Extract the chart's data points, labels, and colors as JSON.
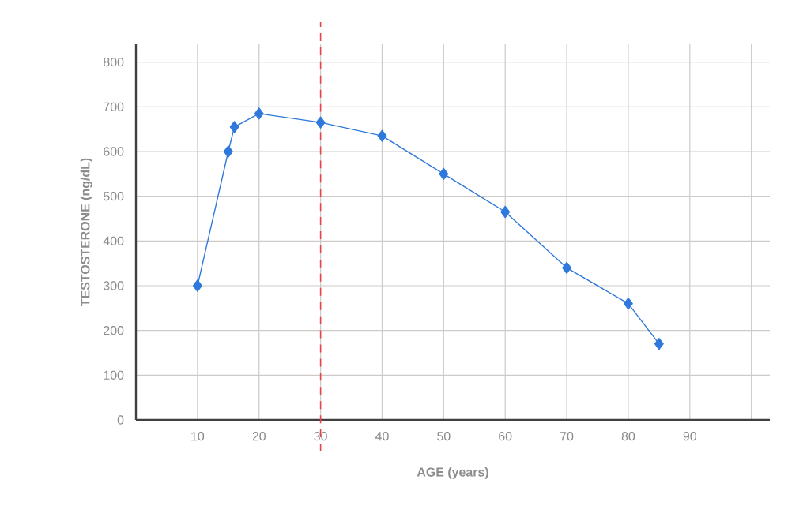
{
  "chart_data": {
    "type": "line",
    "xlabel": "AGE (years)",
    "ylabel": "TESTOSTERONE (ng/dL)",
    "x": [
      10,
      15,
      16,
      20,
      30,
      40,
      50,
      60,
      70,
      80,
      85
    ],
    "series": [
      {
        "color": "#2f78dc",
        "values": [
          300,
          600,
          655,
          685,
          665,
          635,
          550,
          465,
          340,
          260,
          170
        ]
      }
    ],
    "xlim": [
      0,
      103
    ],
    "xticks": [
      10,
      20,
      30,
      40,
      50,
      60,
      70,
      80,
      90,
      {
        "value": 100,
        "label": null
      }
    ],
    "ylim": [
      0,
      840
    ],
    "yticks": [
      0,
      100,
      200,
      300,
      400,
      500,
      600,
      700,
      800
    ],
    "grid": true,
    "marker": "diamond",
    "line_style": "solid",
    "ref_lines": [
      {
        "axis": "x",
        "value": 30,
        "color": "#e8434a",
        "line_style": "dashed"
      }
    ]
  }
}
